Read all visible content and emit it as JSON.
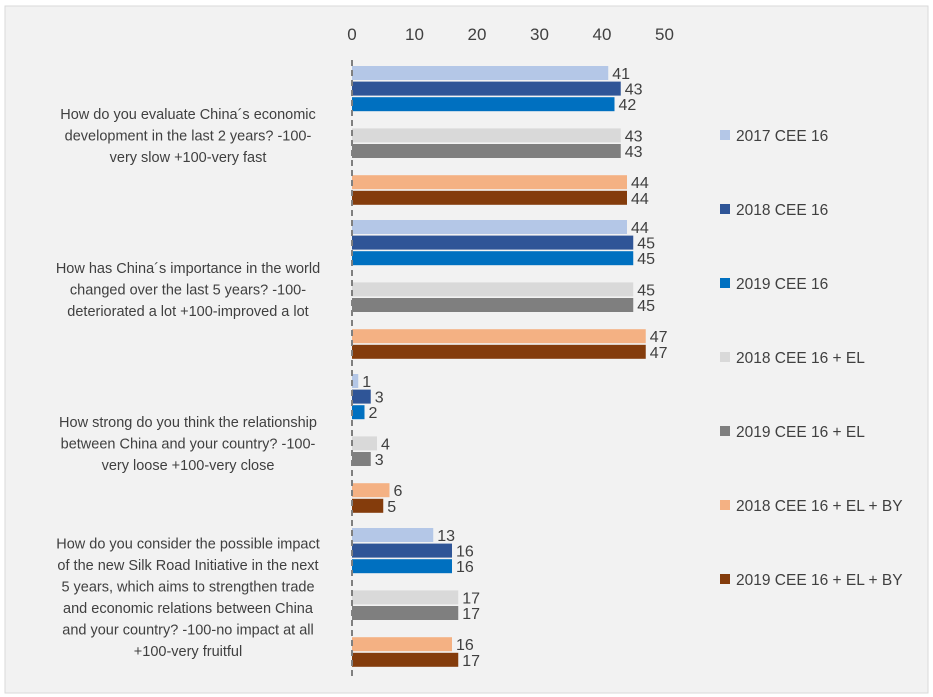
{
  "chart_data": {
    "type": "bar",
    "orientation": "horizontal",
    "title": "",
    "xlabel": "",
    "ylabel": "",
    "xlim": [
      0,
      50
    ],
    "x_ticks": [
      "0",
      "10",
      "20",
      "30",
      "40",
      "50"
    ],
    "grid": false,
    "legend_position": "right",
    "categories": [
      "How do you evaluate China´s economic development in the last 2 years? -100-very slow +100-very fast",
      "How has China´s importance in the world changed over the last 5 years? -100-deteriorated a lot +100-improved a lot",
      "How strong do you think the relationship between China and your country? -100-very loose +100-very close",
      "How do you consider the possible impact of the new Silk Road Initiative in the next 5 years, which aims to strengthen trade and economic relations between China and your country? -100-no impact at all +100-very fruitful"
    ],
    "category_lines": [
      [
        "How do you evaluate China´s economic",
        "development in the last 2 years? -100-",
        "very slow +100-very fast"
      ],
      [
        "How has China´s importance in the world",
        "changed over the last 5 years? -100-",
        "deteriorated a lot +100-improved a lot"
      ],
      [
        "How strong do you think the relationship",
        "between China and your country? -100-",
        "very loose +100-very close"
      ],
      [
        "How do you consider the possible impact",
        "of the new Silk Road Initiative in the next",
        "5 years, which aims to strengthen trade",
        "and economic relations between China",
        "and your country? -100-no impact at all",
        "+100-very fruitful"
      ]
    ],
    "series": [
      {
        "name": "2017 CEE 16",
        "color": "#b4c7e7",
        "values": [
          41,
          44,
          1,
          13
        ]
      },
      {
        "name": "2018 CEE 16",
        "color": "#2f5597",
        "values": [
          43,
          45,
          3,
          16
        ]
      },
      {
        "name": "2019 CEE 16",
        "color": "#0070c0",
        "values": [
          42,
          45,
          2,
          16
        ]
      },
      {
        "name": "2018 CEE 16 + EL",
        "color": "#d9d9d9",
        "values": [
          43,
          45,
          4,
          17
        ]
      },
      {
        "name": "2019 CEE 16 + EL",
        "color": "#7f7f7f",
        "values": [
          43,
          45,
          3,
          17
        ]
      },
      {
        "name": "2018 CEE 16 + EL + BY",
        "color": "#f4b183",
        "values": [
          44,
          47,
          6,
          16
        ]
      },
      {
        "name": "2019 CEE 16 + EL + BY",
        "color": "#843c0c",
        "values": [
          44,
          47,
          5,
          17
        ]
      }
    ],
    "colors": {
      "background": "#f2f2f2",
      "text": "#404040",
      "axis": "#808080"
    }
  }
}
